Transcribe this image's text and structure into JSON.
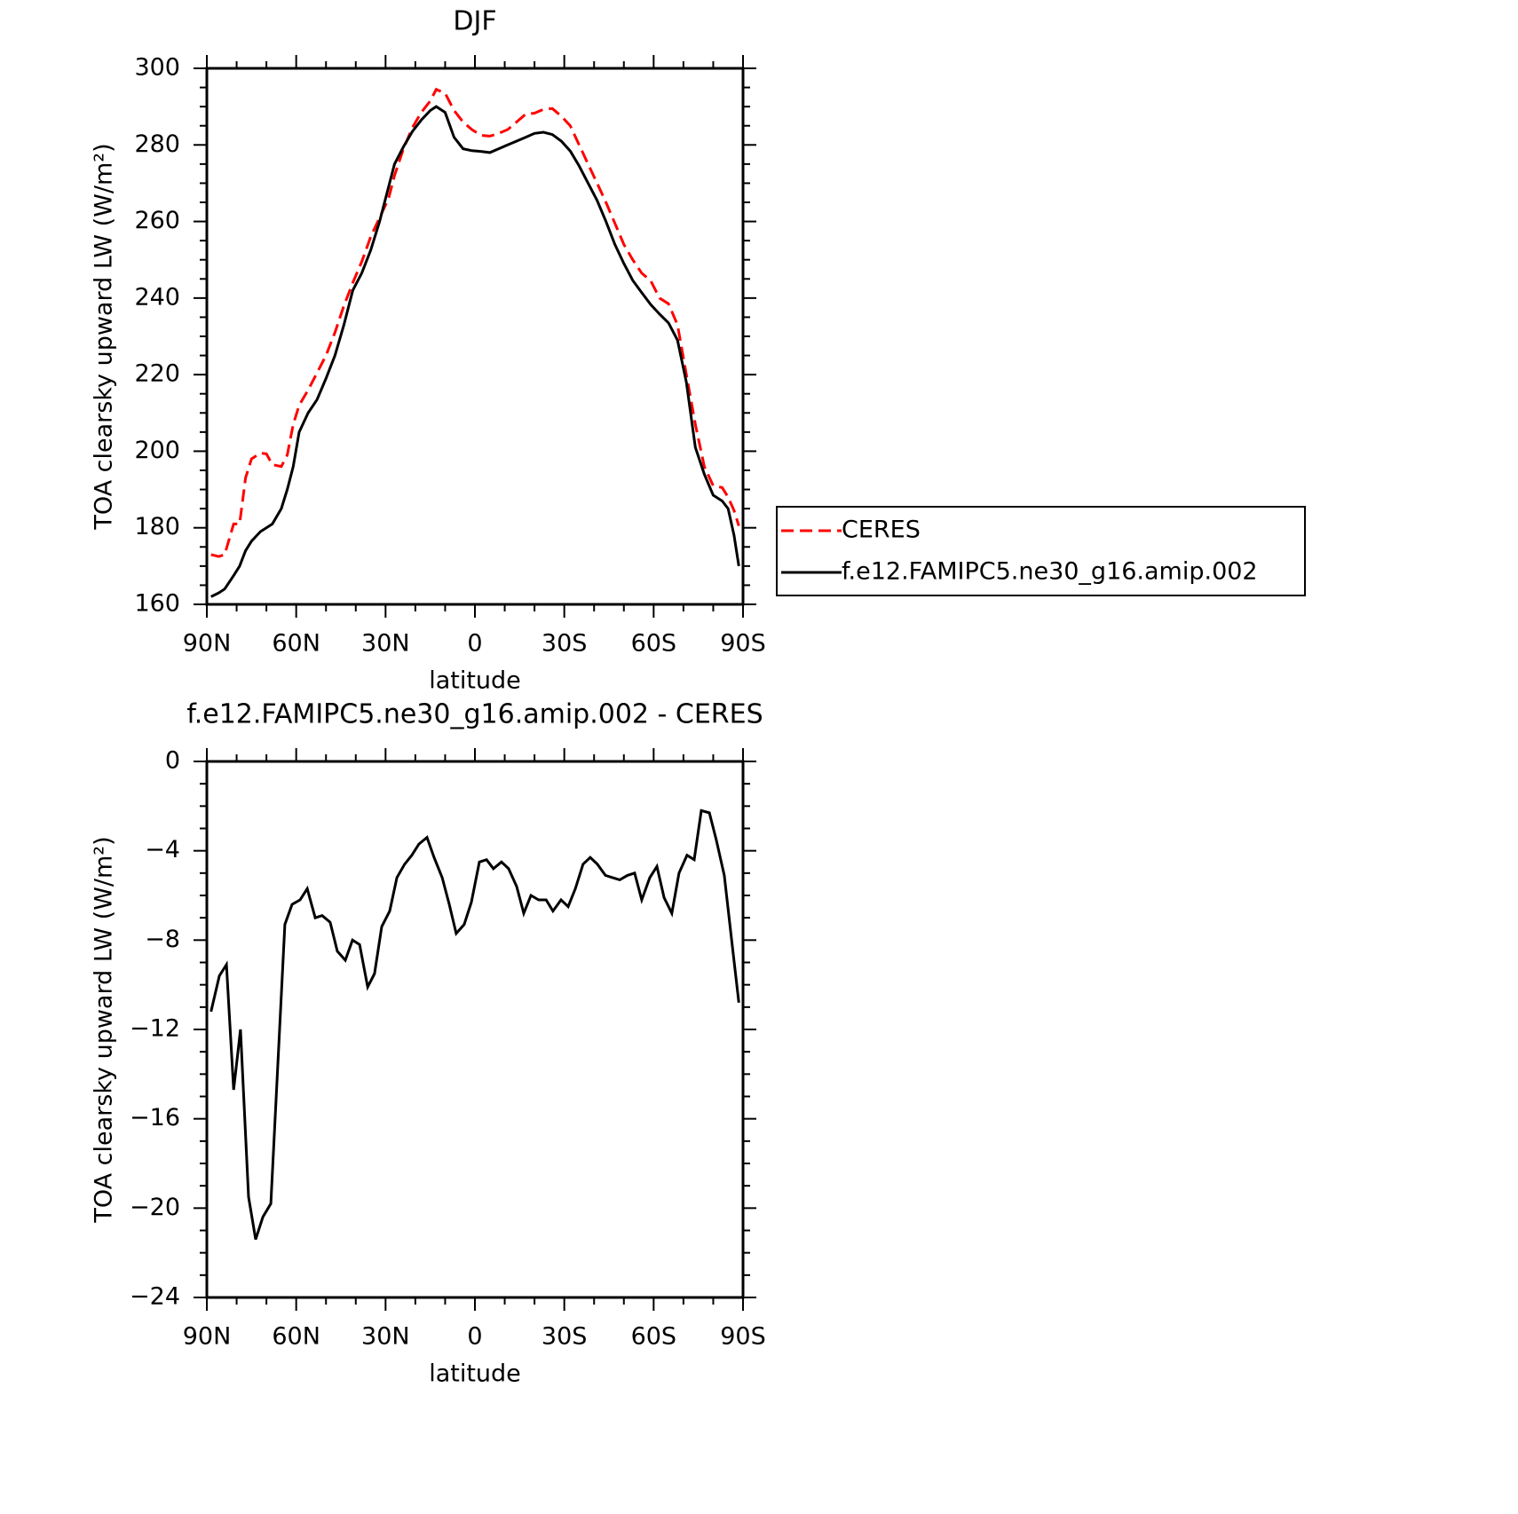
{
  "chart_data": [
    {
      "type": "line",
      "title": "DJF",
      "xlabel": "latitude",
      "ylabel": "TOA clearsky upward LW (W/m²)",
      "x": [
        88.6,
        86,
        84,
        81,
        79,
        77,
        75,
        72,
        70,
        68,
        65,
        63,
        61,
        59,
        56,
        53,
        50,
        47,
        44,
        41,
        38,
        35,
        32,
        29,
        27,
        24,
        21,
        18,
        15,
        13,
        10,
        7,
        4,
        1,
        -2,
        -5,
        -8,
        -11,
        -14,
        -17,
        -20,
        -23,
        -26,
        -29,
        -32,
        -35,
        -38,
        -41,
        -44,
        -47,
        -50,
        -53,
        -56,
        -59,
        -62,
        -65,
        -68,
        -71,
        -74,
        -77,
        -80,
        -83,
        -85,
        -87,
        -88.6
      ],
      "series": [
        {
          "name": "CERES",
          "color": "#ff0000",
          "linestyle": "dashed",
          "values": [
            173,
            172.5,
            173,
            181,
            181,
            193,
            198,
            199.5,
            199.3,
            196.5,
            196,
            199,
            207,
            212,
            216,
            220.5,
            225,
            231,
            238,
            244,
            249.5,
            256,
            261,
            266,
            272,
            279,
            284.5,
            288.5,
            291.5,
            294.5,
            293.5,
            289,
            286,
            284,
            282.5,
            282.3,
            283,
            284,
            286,
            288,
            288.3,
            289.3,
            289.5,
            287.5,
            285,
            280,
            275,
            270,
            265,
            259.5,
            254,
            250,
            246.5,
            244.5,
            240,
            238.5,
            233,
            220,
            207,
            196,
            191,
            190.5,
            188,
            184.5,
            180.5
          ]
        },
        {
          "name": "f.e12.FAMIPC5.ne30_g16.amip.002",
          "color": "#000000",
          "linestyle": "solid",
          "values": [
            162,
            163,
            164,
            167.5,
            170,
            174,
            176.5,
            179,
            180,
            181,
            185,
            190,
            196,
            205,
            210,
            213.5,
            219,
            225,
            233,
            242,
            246.5,
            252.5,
            260,
            269,
            275,
            279.5,
            283.5,
            286.5,
            289,
            290,
            288.5,
            282,
            279,
            278.5,
            278.3,
            278,
            279,
            280,
            281,
            282,
            283,
            283.3,
            282.7,
            281,
            278.4,
            274.5,
            270,
            265.5,
            260,
            254,
            249,
            244.6,
            241.4,
            238.3,
            235.8,
            233.5,
            229,
            218,
            201,
            194,
            188.5,
            187,
            185,
            178,
            170
          ]
        }
      ],
      "xlim": [
        90,
        -90
      ],
      "xticks": [
        {
          "value": 90,
          "label": "90N"
        },
        {
          "value": 60,
          "label": "60N"
        },
        {
          "value": 30,
          "label": "30N"
        },
        0,
        {
          "value": -30,
          "label": "30S"
        },
        {
          "value": -60,
          "label": "60S"
        },
        {
          "value": -90,
          "label": "90S"
        }
      ],
      "xminorticks": [
        80,
        70,
        50,
        40,
        20,
        10,
        -10,
        -20,
        -40,
        -50,
        -70,
        -80
      ],
      "ylim": [
        160,
        300
      ],
      "yticks": [
        160,
        180,
        200,
        220,
        240,
        260,
        280,
        300
      ],
      "yminorticks": [
        165,
        170,
        175,
        185,
        190,
        195,
        205,
        210,
        215,
        225,
        230,
        235,
        245,
        250,
        255,
        265,
        270,
        275,
        285,
        290,
        295
      ],
      "legend": "outside-right"
    },
    {
      "type": "line",
      "title": "f.e12.FAMIPC5.ne30_g16.amip.002 - CERES",
      "xlabel": "latitude",
      "ylabel": "TOA clearsky upward LW (W/m²)",
      "x": [
        88.6,
        85.8,
        83.4,
        81,
        78.7,
        76,
        73.6,
        71.2,
        68.5,
        63.8,
        61.4,
        58.7,
        56.3,
        53.6,
        51.3,
        48.6,
        46.2,
        43.5,
        41.1,
        38.7,
        36,
        33.7,
        31.3,
        28.6,
        26.2,
        23.6,
        21.2,
        18.8,
        16.1,
        13.7,
        11,
        8.6,
        6.3,
        3.6,
        1.2,
        -1.5,
        -3.9,
        -6.2,
        -8.9,
        -11.3,
        -14,
        -16.4,
        -18.8,
        -21.4,
        -23.9,
        -26.2,
        -28.9,
        -31.3,
        -33.7,
        -36.3,
        -38.7,
        -41.1,
        -43.8,
        -46.2,
        -48.6,
        -51.2,
        -53.6,
        -56,
        -58.7,
        -61.1,
        -63.5,
        -66.1,
        -68.5,
        -71.2,
        -73.6,
        -76,
        -78.7,
        -81,
        -83.7,
        -86.1,
        -88.6
      ],
      "values": [
        -11.2,
        -9.6,
        -9.1,
        -14.7,
        -12,
        -19.5,
        -21.4,
        -20.4,
        -19.8,
        -7.3,
        -6.4,
        -6.2,
        -5.7,
        -7,
        -6.9,
        -7.2,
        -8.5,
        -8.9,
        -8,
        -8.2,
        -10.1,
        -9.5,
        -7.4,
        -6.7,
        -5.2,
        -4.6,
        -4.2,
        -3.7,
        -3.4,
        -4.3,
        -5.2,
        -6.4,
        -7.7,
        -7.3,
        -6.3,
        -4.5,
        -4.4,
        -4.8,
        -4.5,
        -4.8,
        -5.6,
        -6.8,
        -6,
        -6.2,
        -6.2,
        -6.7,
        -6.2,
        -6.5,
        -5.7,
        -4.6,
        -4.3,
        -4.6,
        -5.1,
        -5.2,
        -5.3,
        -5.1,
        -5,
        -6.2,
        -5.2,
        -4.7,
        -6.1,
        -6.8,
        -5,
        -4.2,
        -4.4,
        -2.2,
        -2.3,
        -3.5,
        -5.1,
        -7.9,
        -10.8
      ],
      "color": "#000000",
      "linestyle": "solid",
      "xlim": [
        90,
        -90
      ],
      "xticks": [
        {
          "value": 90,
          "label": "90N"
        },
        {
          "value": 60,
          "label": "60N"
        },
        {
          "value": 30,
          "label": "30N"
        },
        0,
        {
          "value": -30,
          "label": "30S"
        },
        {
          "value": -60,
          "label": "60S"
        },
        {
          "value": -90,
          "label": "90S"
        }
      ],
      "xminorticks": [
        80,
        70,
        50,
        40,
        20,
        10,
        -10,
        -20,
        -40,
        -50,
        -70,
        -80
      ],
      "ylim": [
        -24,
        0
      ],
      "yticks": [
        {
          "value": -24,
          "label": "−24"
        },
        {
          "value": -20,
          "label": "−20"
        },
        {
          "value": -16,
          "label": "−16"
        },
        {
          "value": -12,
          "label": "−12"
        },
        {
          "value": -8,
          "label": "−8"
        },
        {
          "value": -4,
          "label": "−4"
        },
        0
      ],
      "yminorticks": [
        -1,
        -2,
        -3,
        -5,
        -6,
        -7,
        -9,
        -10,
        -11,
        -13,
        -14,
        -15,
        -17,
        -18,
        -19,
        -21,
        -22,
        -23
      ]
    }
  ]
}
